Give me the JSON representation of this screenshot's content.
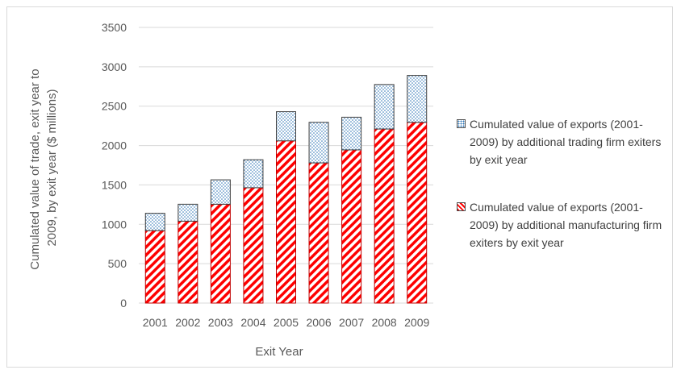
{
  "chart_data": {
    "type": "bar",
    "stacked": true,
    "categories": [
      "2001",
      "2002",
      "2003",
      "2004",
      "2005",
      "2006",
      "2007",
      "2008",
      "2009"
    ],
    "series": [
      {
        "name": "Cumulated value of exports (2001-2009) by additional manufacturing firm exiters by exit year",
        "values": [
          920,
          1040,
          1255,
          1465,
          2060,
          1780,
          1945,
          2210,
          2295
        ],
        "color": "#ff0000",
        "pattern": "diagonal-stripes"
      },
      {
        "name": "Cumulated value of exports (2001-2009) by additional trading firm exiters by exit year",
        "values": [
          220,
          215,
          310,
          355,
          370,
          515,
          415,
          565,
          595
        ],
        "color": "#bdd7ee",
        "pattern": "dots"
      }
    ],
    "title": "",
    "xlabel": "Exit Year",
    "ylabel": "Cumulated value of trade, exit year to 2009, by exit year ($ millions)",
    "ylim": [
      0,
      3500
    ],
    "yticks": [
      0,
      500,
      1000,
      1500,
      2000,
      2500,
      3000,
      3500
    ],
    "grid": true,
    "legend_position": "right"
  },
  "legend": {
    "trading_label": "Cumulated value of exports (2001-2009) by additional trading firm exiters by exit year",
    "manufacturing_label": "Cumulated value of exports (2001-2009) by additional manufacturing firm exiters by exit year"
  }
}
